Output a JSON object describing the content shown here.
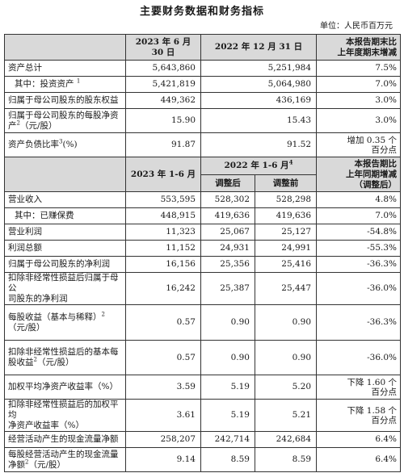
{
  "title": "主要财务数据和财务指标",
  "unit": "单位：人民币百万元",
  "balance_header": {
    "col1": "2023 年 6 月 30 日",
    "col2": "2022 年 12 月 31 日",
    "col3_line1": "本报告期末比",
    "col3_line2": "上年度期末增减"
  },
  "balance_rows": [
    {
      "label": "资产总计",
      "a": "5,643,860",
      "b": "5,251,984",
      "c": "7.5%"
    },
    {
      "label": "其中：投资资产",
      "sup": "1",
      "a": "5,421,819",
      "b": "5,064,980",
      "c": "7.0%"
    },
    {
      "label": "归属于母公司股东的股东权益",
      "a": "449,362",
      "b": "436,169",
      "c": "3.0%"
    },
    {
      "label1": "归属于母公司股东的每股净资",
      "label2a": "产",
      "sup": "2",
      "label2b": "（元/股）",
      "a": "15.90",
      "b": "15.43",
      "c": "3.0%"
    },
    {
      "label": "资产负债比率",
      "sup": "3",
      "label_tail": "(%)",
      "a": "91.87",
      "b": "91.52",
      "c1": "增加 0.35 个",
      "c2": "百分点"
    }
  ],
  "income_header": {
    "col1": "2023 年 1-6 月",
    "col2": "2022 年 1-6 月",
    "col2_sup": "4",
    "sub_adjusted": "调整后",
    "sub_before": "调整前",
    "col4_line1": "本报告期比",
    "col4_line2": "上年同期增减",
    "col4_line3": "（调整后）"
  },
  "income_rows": [
    {
      "label": "营业收入",
      "a": "553,595",
      "b": "528,302",
      "c": "528,298",
      "d": "4.8%"
    },
    {
      "label": "其中：已赚保费",
      "a": "448,915",
      "b": "419,636",
      "c": "419,636",
      "d": "7.0%"
    },
    {
      "label": "营业利润",
      "a": "11,323",
      "b": "25,067",
      "c": "25,127",
      "d": "-54.8%"
    },
    {
      "label": "利润总额",
      "a": "11,152",
      "b": "24,931",
      "c": "24,991",
      "d": "-55.3%"
    },
    {
      "label": "归属于母公司股东的净利润",
      "a": "16,156",
      "b": "25,356",
      "c": "25,416",
      "d": "-36.3%"
    },
    {
      "label1": "扣除非经常性损益后归属于母公",
      "label2": "司股东的净利润",
      "a": "16,242",
      "b": "25,387",
      "c": "25,447",
      "d": "-36.0%"
    },
    {
      "label1": "每股收益（基本与稀释）",
      "sup": "2",
      "label2": "（元/股）",
      "a": "0.57",
      "b": "0.90",
      "c": "0.90",
      "d": "-36.3%"
    },
    {
      "label1": "扣除非经常性损益后的基本每",
      "label2a": "股收益",
      "sup": "2",
      "label2b": "（元/股）",
      "a": "0.57",
      "b": "0.90",
      "c": "0.90",
      "d": "-36.0%"
    },
    {
      "label": "加权平均净资产收益率（%）",
      "a": "3.59",
      "b": "5.19",
      "c": "5.20",
      "d1": "下降 1.60 个",
      "d2": "百分点"
    },
    {
      "label1": "扣除非经常性损益后的加权平均",
      "label2": "净资产收益率（%）",
      "a": "3.61",
      "b": "5.19",
      "c": "5.21",
      "d1": "下降 1.58 个",
      "d2": "百分点"
    },
    {
      "label": "经营活动产生的现金流量净额",
      "a": "258,207",
      "b": "242,714",
      "c": "242,684",
      "d": "6.4%"
    },
    {
      "label1": "每股经营活动产生的现金流量",
      "label2a": "净额",
      "sup": "2",
      "label2b": "（元/股）",
      "a": "9.14",
      "b": "8.59",
      "c": "8.59",
      "d": "6.4%"
    }
  ]
}
